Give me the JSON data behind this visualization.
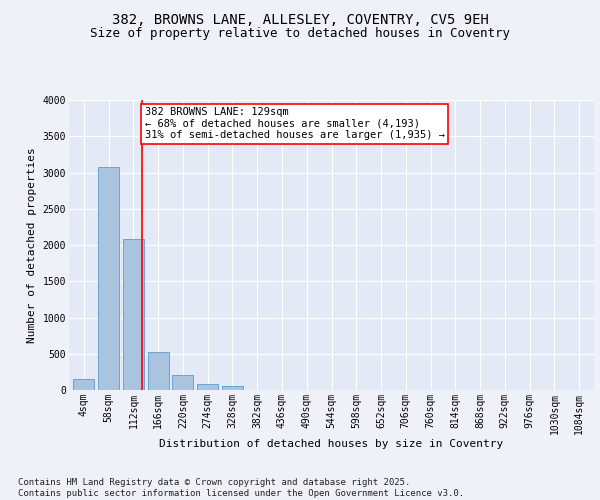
{
  "title_line1": "382, BROWNS LANE, ALLESLEY, COVENTRY, CV5 9EH",
  "title_line2": "Size of property relative to detached houses in Coventry",
  "xlabel": "Distribution of detached houses by size in Coventry",
  "ylabel": "Number of detached properties",
  "footnote": "Contains HM Land Registry data © Crown copyright and database right 2025.\nContains public sector information licensed under the Open Government Licence v3.0.",
  "bar_labels": [
    "4sqm",
    "58sqm",
    "112sqm",
    "166sqm",
    "220sqm",
    "274sqm",
    "328sqm",
    "382sqm",
    "436sqm",
    "490sqm",
    "544sqm",
    "598sqm",
    "652sqm",
    "706sqm",
    "760sqm",
    "814sqm",
    "868sqm",
    "922sqm",
    "976sqm",
    "1030sqm",
    "1084sqm"
  ],
  "bar_values": [
    150,
    3080,
    2080,
    530,
    210,
    80,
    55,
    0,
    0,
    0,
    0,
    0,
    0,
    0,
    0,
    0,
    0,
    0,
    0,
    0,
    0
  ],
  "bar_color": "#aac4e0",
  "bar_edge_color": "#5b9bd5",
  "vline_x": 2.35,
  "vline_color": "red",
  "annotation_text": "382 BROWNS LANE: 129sqm\n← 68% of detached houses are smaller (4,193)\n31% of semi-detached houses are larger (1,935) →",
  "annotation_box_color": "white",
  "annotation_box_edge": "red",
  "ylim": [
    0,
    4000
  ],
  "yticks": [
    0,
    500,
    1000,
    1500,
    2000,
    2500,
    3000,
    3500,
    4000
  ],
  "bg_color": "#eef2f8",
  "plot_bg_color": "#e4eaf5",
  "grid_color": "white",
  "title_fontsize": 10,
  "subtitle_fontsize": 9,
  "axis_label_fontsize": 8,
  "tick_fontsize": 7,
  "footnote_fontsize": 6.5,
  "annot_fontsize": 7.5
}
